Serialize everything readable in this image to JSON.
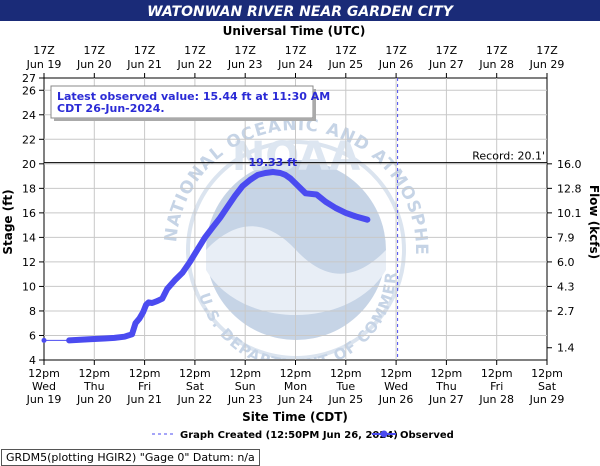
{
  "chart_data": {
    "type": "line",
    "title": "WATONWAN RIVER NEAR GARDEN CITY",
    "top_axis_label": "Universal Time (UTC)",
    "bottom_axis_label": "Site Time (CDT)",
    "ylabel": "Stage (ft)",
    "y2label": "Flow (kcfs)",
    "ylim": [
      4,
      27
    ],
    "yticks": [
      4,
      6,
      8,
      10,
      12,
      14,
      16,
      18,
      20,
      22,
      24,
      26,
      27
    ],
    "y2ticks": [
      {
        "stage": 5,
        "label": "1.4"
      },
      {
        "stage": 8,
        "label": "2.7"
      },
      {
        "stage": 10,
        "label": "4.3"
      },
      {
        "stage": 12,
        "label": "6.0"
      },
      {
        "stage": 14,
        "label": "7.9"
      },
      {
        "stage": 16,
        "label": "10.1"
      },
      {
        "stage": 18,
        "label": "12.8"
      },
      {
        "stage": 20,
        "label": "16.0"
      }
    ],
    "top_ticks": [
      [
        "17Z",
        "Jun 19"
      ],
      [
        "17Z",
        "Jun 20"
      ],
      [
        "17Z",
        "Jun 21"
      ],
      [
        "17Z",
        "Jun 22"
      ],
      [
        "17Z",
        "Jun 23"
      ],
      [
        "17Z",
        "Jun 24"
      ],
      [
        "17Z",
        "Jun 25"
      ],
      [
        "17Z",
        "Jun 26"
      ],
      [
        "17Z",
        "Jun 27"
      ],
      [
        "17Z",
        "Jun 28"
      ],
      [
        "17Z",
        "Jun 29"
      ]
    ],
    "bottom_ticks": [
      [
        "12pm",
        "Wed",
        "Jun 19"
      ],
      [
        "12pm",
        "Thu",
        "Jun 20"
      ],
      [
        "12pm",
        "Fri",
        "Jun 21"
      ],
      [
        "12pm",
        "Sat",
        "Jun 22"
      ],
      [
        "12pm",
        "Sun",
        "Jun 23"
      ],
      [
        "12pm",
        "Mon",
        "Jun 24"
      ],
      [
        "12pm",
        "Tue",
        "Jun 25"
      ],
      [
        "12pm",
        "Wed",
        "Jun 26"
      ],
      [
        "12pm",
        "Thu",
        "Jun 27"
      ],
      [
        "12pm",
        "Fri",
        "Jun 28"
      ],
      [
        "12pm",
        "Sat",
        "Jun 29"
      ]
    ],
    "record_value": 20.1,
    "record_label": "Record: 20.1'",
    "peak_label": "19.33 ft",
    "latest_note_line1": "Latest observed value: 15.44 ft at 11:30 AM",
    "latest_note_line2": "CDT 26-Jun-2024.",
    "graph_created_day": 7.03,
    "series": [
      {
        "name": "Observed",
        "color": "#4b4bf0",
        "points": [
          [
            0,
            5.6
          ],
          [
            0.5,
            5.6
          ],
          [
            0.9,
            5.7
          ],
          [
            1.2,
            5.75
          ],
          [
            1.4,
            5.8
          ],
          [
            1.6,
            5.9
          ],
          [
            1.75,
            6.1
          ],
          [
            1.82,
            7.0
          ],
          [
            1.9,
            7.4
          ],
          [
            1.97,
            7.9
          ],
          [
            2.03,
            8.5
          ],
          [
            2.08,
            8.7
          ],
          [
            2.15,
            8.65
          ],
          [
            2.25,
            8.8
          ],
          [
            2.35,
            9.0
          ],
          [
            2.45,
            9.8
          ],
          [
            2.6,
            10.5
          ],
          [
            2.75,
            11.1
          ],
          [
            2.9,
            12.0
          ],
          [
            3.05,
            13.0
          ],
          [
            3.2,
            14.0
          ],
          [
            3.35,
            14.8
          ],
          [
            3.5,
            15.6
          ],
          [
            3.65,
            16.5
          ],
          [
            3.8,
            17.4
          ],
          [
            3.95,
            18.2
          ],
          [
            4.1,
            18.7
          ],
          [
            4.25,
            19.1
          ],
          [
            4.4,
            19.25
          ],
          [
            4.55,
            19.33
          ],
          [
            4.7,
            19.25
          ],
          [
            4.8,
            19.1
          ],
          [
            4.9,
            18.8
          ],
          [
            5.0,
            18.4
          ],
          [
            5.1,
            18.0
          ],
          [
            5.2,
            17.6
          ],
          [
            5.42,
            17.5
          ],
          [
            5.6,
            16.9
          ],
          [
            5.8,
            16.4
          ],
          [
            6.0,
            16.0
          ],
          [
            6.2,
            15.7
          ],
          [
            6.43,
            15.44
          ]
        ]
      }
    ]
  },
  "legend": {
    "created_label": "Graph Created (12:50PM Jun 26, 2024)",
    "observed_label": "Observed"
  },
  "footer": {
    "text": "GRDM5(plotting HGIR2) \"Gage 0\" Datum: n/a"
  },
  "colors": {
    "title_bg": "#1a2b78",
    "observed": "#4b4bf0",
    "note_text": "#2b2bd6",
    "watermark": "#c6d4e6"
  },
  "watermark": {
    "ring_text": "NATIONAL OCEANIC AND ATMOSPHERIC ADMINISTRATION",
    "bottom_text": "U.S. DEPARTMENT OF COMMERCE",
    "center_text": "NOAA"
  }
}
